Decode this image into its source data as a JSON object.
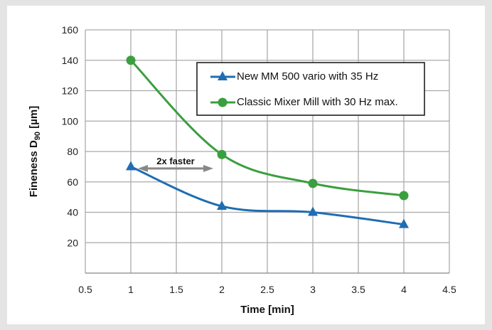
{
  "chart_data": {
    "type": "line",
    "xlabel": "Time [min]",
    "ylabel_main": "Fineness D",
    "ylabel_sub": "90",
    "ylabel_unit": " [µm]",
    "xlim": [
      0.5,
      4.5
    ],
    "ylim": [
      0,
      160
    ],
    "xticks": [
      "0.5",
      "1",
      "1.5",
      "2",
      "2.5",
      "3",
      "3.5",
      "4",
      "4.5"
    ],
    "yticks": [
      "20",
      "40",
      "60",
      "80",
      "100",
      "120",
      "140",
      "160"
    ],
    "grid": true,
    "legend_position": "top-right",
    "x": [
      1,
      2,
      3,
      4
    ],
    "series": [
      {
        "name": "New MM 500 vario with 35 Hz",
        "values": [
          70,
          44,
          40,
          32
        ],
        "marker": "triangle",
        "color": "#1f6db3"
      },
      {
        "name": "Classic Mixer Mill with 30 Hz max.",
        "values": [
          140,
          78,
          59,
          51
        ],
        "marker": "circle",
        "color": "#3a9f3f"
      }
    ],
    "annotation": {
      "text": "2x faster",
      "from_x": 1,
      "to_x": 2,
      "y": 74
    }
  }
}
